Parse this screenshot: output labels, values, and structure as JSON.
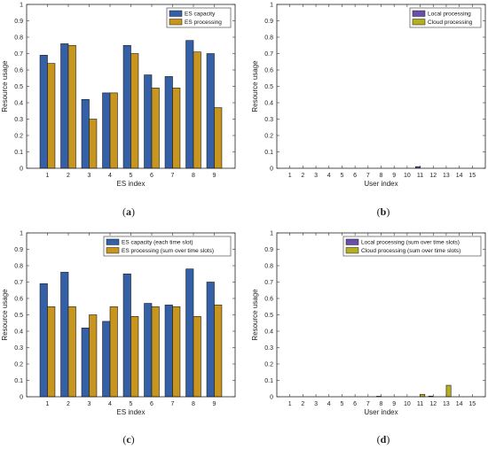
{
  "chart_data": [
    {
      "type": "bar",
      "panel": "(a)",
      "categories": [
        "1",
        "2",
        "3",
        "4",
        "5",
        "6",
        "7",
        "8",
        "9"
      ],
      "xlabel": "ES index",
      "ylabel": "Resource usage",
      "ylim": [
        0,
        1
      ],
      "yticks": [
        "0",
        "0.1",
        "0.2",
        "0.3",
        "0.4",
        "0.5",
        "0.6",
        "0.7",
        "0.8",
        "0.9",
        "1"
      ],
      "legend_position": "top-right",
      "series": [
        {
          "name": "ES capacity",
          "color": "#3460a8",
          "values": [
            0.69,
            0.76,
            0.42,
            0.46,
            0.75,
            0.57,
            0.56,
            0.78,
            0.7
          ]
        },
        {
          "name": "ES processing",
          "color": "#c8961e",
          "values": [
            0.64,
            0.75,
            0.3,
            0.46,
            0.7,
            0.49,
            0.49,
            0.71,
            0.37
          ]
        }
      ]
    },
    {
      "type": "bar",
      "panel": "(b)",
      "categories": [
        "1",
        "2",
        "3",
        "4",
        "5",
        "6",
        "7",
        "8",
        "9",
        "10",
        "11",
        "12",
        "13",
        "14",
        "15"
      ],
      "xlabel": "User index",
      "ylabel": "Resource usage",
      "ylim": [
        0,
        1
      ],
      "yticks": [
        "0",
        "0.1",
        "0.2",
        "0.3",
        "0.4",
        "0.5",
        "0.6",
        "0.7",
        "0.8",
        "0.9",
        "1"
      ],
      "legend_position": "top-right",
      "series": [
        {
          "name": "Local processing",
          "color": "#6a4fa8",
          "values": [
            0,
            0,
            0,
            0,
            0,
            0,
            0,
            0,
            0,
            0,
            0.01,
            0,
            0,
            0,
            0
          ]
        },
        {
          "name": "Cloud processing",
          "color": "#b6ae22",
          "values": [
            0,
            0,
            0,
            0,
            0,
            0,
            0,
            0,
            0,
            0,
            0,
            0,
            0,
            0,
            0
          ]
        }
      ]
    },
    {
      "type": "bar",
      "panel": "(c)",
      "categories": [
        "1",
        "2",
        "3",
        "4",
        "5",
        "6",
        "7",
        "8",
        "9"
      ],
      "xlabel": "ES index",
      "ylabel": "Resource usage",
      "ylim": [
        0,
        1
      ],
      "yticks": [
        "0",
        "0.1",
        "0.2",
        "0.3",
        "0.4",
        "0.5",
        "0.6",
        "0.7",
        "0.8",
        "0.9",
        "1"
      ],
      "legend_position": "top-right",
      "series": [
        {
          "name": "ES capacity (each time slot)",
          "color": "#3460a8",
          "values": [
            0.69,
            0.76,
            0.42,
            0.46,
            0.75,
            0.57,
            0.56,
            0.78,
            0.7
          ]
        },
        {
          "name": "ES processing (sum over time slots)",
          "color": "#c8961e",
          "values": [
            0.55,
            0.55,
            0.5,
            0.55,
            0.49,
            0.55,
            0.55,
            0.49,
            0.56
          ]
        }
      ]
    },
    {
      "type": "bar",
      "panel": "(d)",
      "categories": [
        "1",
        "2",
        "3",
        "4",
        "5",
        "6",
        "7",
        "8",
        "9",
        "10",
        "11",
        "12",
        "13",
        "14",
        "15"
      ],
      "xlabel": "User index",
      "ylabel": "Resource usage",
      "ylim": [
        0,
        1
      ],
      "yticks": [
        "0",
        "0.1",
        "0.2",
        "0.3",
        "0.4",
        "0.5",
        "0.6",
        "0.7",
        "0.8",
        "0.9",
        "1"
      ],
      "legend_position": "top-right",
      "series": [
        {
          "name": "Local processing (sum over time slots)",
          "color": "#6a4fa8",
          "values": [
            0,
            0,
            0,
            0,
            0,
            0,
            0,
            0.003,
            0,
            0,
            0,
            0.004,
            0,
            0,
            0
          ]
        },
        {
          "name": "Cloud processing (sum over time slots)",
          "color": "#b6ae22",
          "values": [
            0,
            0,
            0,
            0,
            0,
            0,
            0,
            0,
            0,
            0,
            0.015,
            0,
            0.07,
            0,
            0
          ]
        }
      ]
    }
  ]
}
